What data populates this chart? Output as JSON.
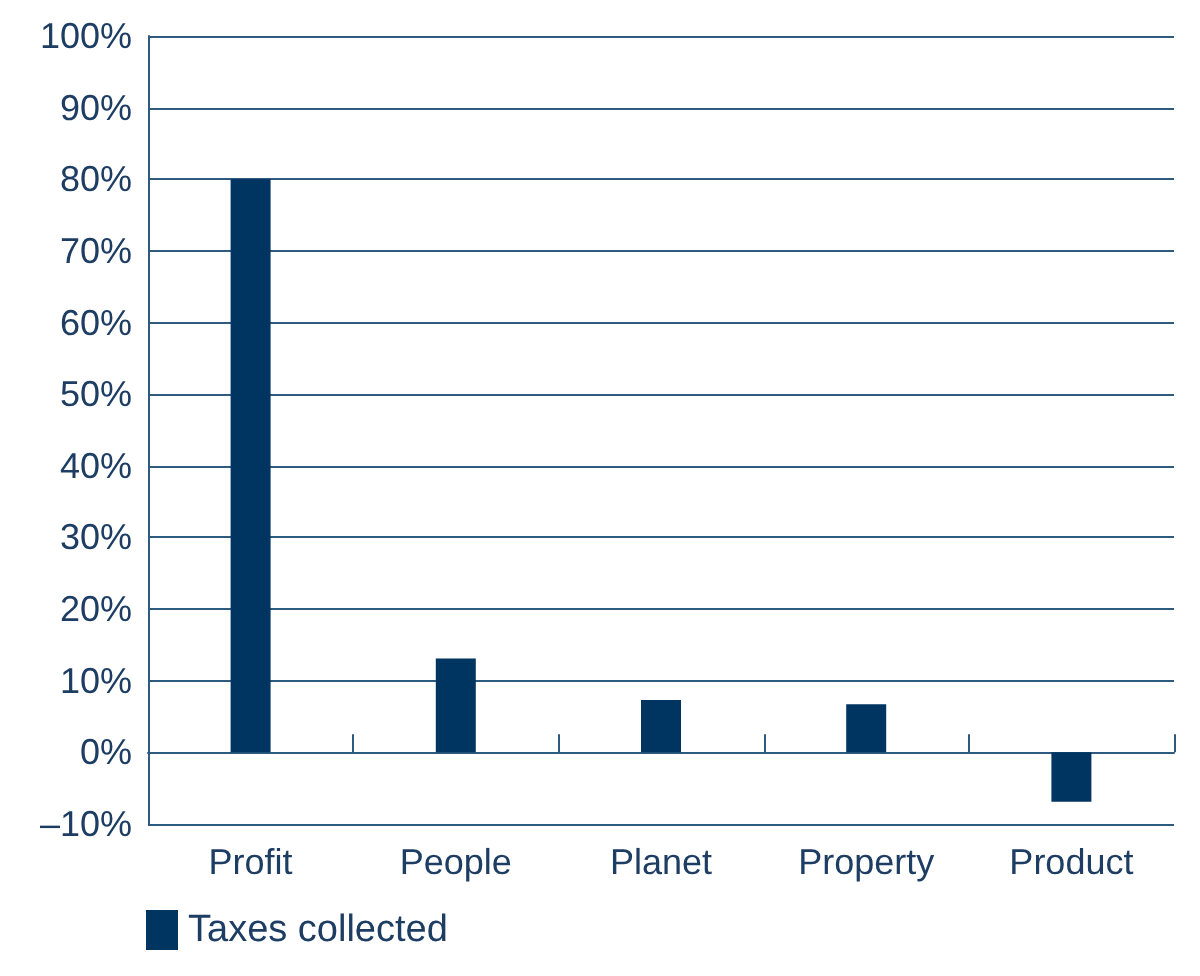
{
  "chart_data": {
    "type": "bar",
    "categories": [
      "Profit",
      "People",
      "Planet",
      "Property",
      "Product"
    ],
    "series": [
      {
        "name": "Taxes collected",
        "color": "#003562",
        "values": [
          80,
          13.1,
          7.3,
          6.7,
          -6.9
        ]
      }
    ],
    "ylim": [
      -10,
      100
    ],
    "yticks": [
      {
        "value": -10,
        "label": "–10%"
      },
      {
        "value": 0,
        "label": "0%"
      },
      {
        "value": 10,
        "label": "10%"
      },
      {
        "value": 20,
        "label": "20%"
      },
      {
        "value": 30,
        "label": "30%"
      },
      {
        "value": 40,
        "label": "40%"
      },
      {
        "value": 50,
        "label": "50%"
      },
      {
        "value": 60,
        "label": "60%"
      },
      {
        "value": 70,
        "label": "70%"
      },
      {
        "value": 80,
        "label": "80%"
      },
      {
        "value": 90,
        "label": "90%"
      },
      {
        "value": 100,
        "label": "100%"
      }
    ],
    "grid": "y",
    "legend": "bottom left"
  }
}
